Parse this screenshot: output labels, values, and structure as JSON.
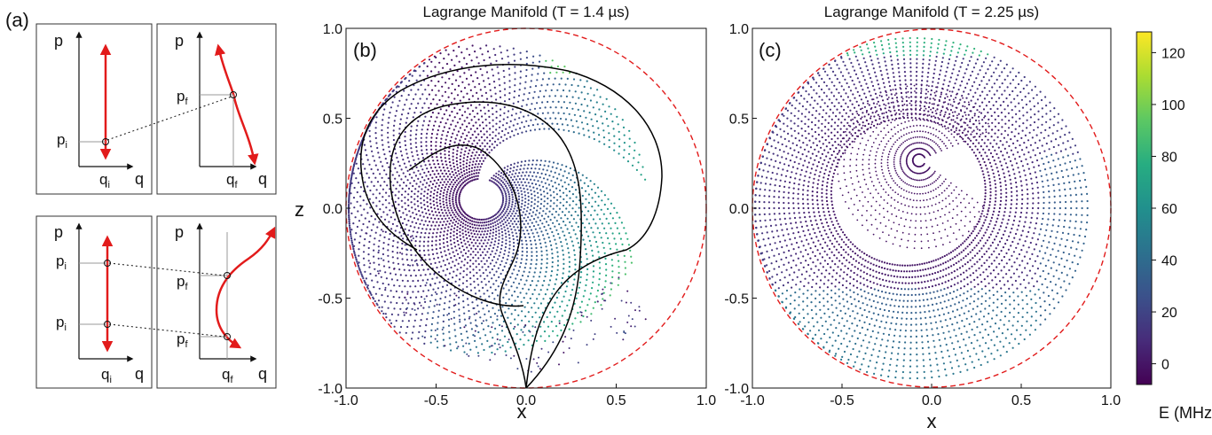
{
  "panel_labels": {
    "a": "(a)",
    "b": "(b)",
    "c": "(c)"
  },
  "schematic": {
    "p": "p",
    "q": "q",
    "pi": "p",
    "pf": "p",
    "qi": "q",
    "qf": "q",
    "sub_i": "i",
    "sub_f": "f"
  },
  "colors": {
    "arrow": "#e21b1b",
    "boundary": "#e21b1b",
    "trajectory": "#000000",
    "colormap": [
      "#440154",
      "#472c7a",
      "#3b518b",
      "#2c718e",
      "#21908d",
      "#27ad81",
      "#5cc863",
      "#aadc32",
      "#fde725"
    ]
  },
  "colorbar": {
    "ticks": [
      "120",
      "100",
      "80",
      "60",
      "40",
      "20",
      "0"
    ],
    "tick_values": [
      120,
      100,
      80,
      60,
      40,
      20,
      0
    ],
    "range": [
      -8,
      128
    ],
    "label": "E (MHz)"
  },
  "chart_data": [
    {
      "type": "scatter",
      "title": "Lagrange Manifold (T = 1.4 µs)",
      "xlabel": "x",
      "ylabel": "z",
      "xlim": [
        -1.0,
        1.0
      ],
      "ylim": [
        -1.0,
        1.0
      ],
      "xticks": [
        "-1.0",
        "-0.5",
        "0.0",
        "0.5",
        "1.0"
      ],
      "yticks": [
        "1.0",
        "0.5",
        "0.0",
        "-0.5",
        "-1.0"
      ],
      "xtick_values": [
        -1.0,
        -0.5,
        0.0,
        0.5,
        1.0
      ],
      "ytick_values": [
        1.0,
        0.5,
        0.0,
        -0.5,
        -1.0
      ],
      "boundary": "unit circle (dashed)",
      "manifold": "spiral sheet of points colored by E, center approx (-0.15, 0.2)",
      "trajectories": 3
    },
    {
      "type": "scatter",
      "title": "Lagrange Manifold (T = 2.25 µs)",
      "xlabel": "x",
      "ylabel": "",
      "xlim": [
        -1.0,
        1.0
      ],
      "ylim": [
        -1.0,
        1.0
      ],
      "xticks": [
        "-1.0",
        "-0.5",
        "0.0",
        "0.5",
        "1.0"
      ],
      "yticks": [
        "1.0",
        "0.5",
        "0.0",
        "-0.5",
        "-1.0"
      ],
      "xtick_values": [
        -1.0,
        -0.5,
        0.0,
        0.5,
        1.0
      ],
      "ytick_values": [
        1.0,
        0.5,
        0.0,
        -0.5,
        -1.0
      ],
      "boundary": "unit circle (dashed)",
      "manifold": "annular band of points colored by E, inner hole centered approx (-0.1, -0.05)"
    }
  ]
}
